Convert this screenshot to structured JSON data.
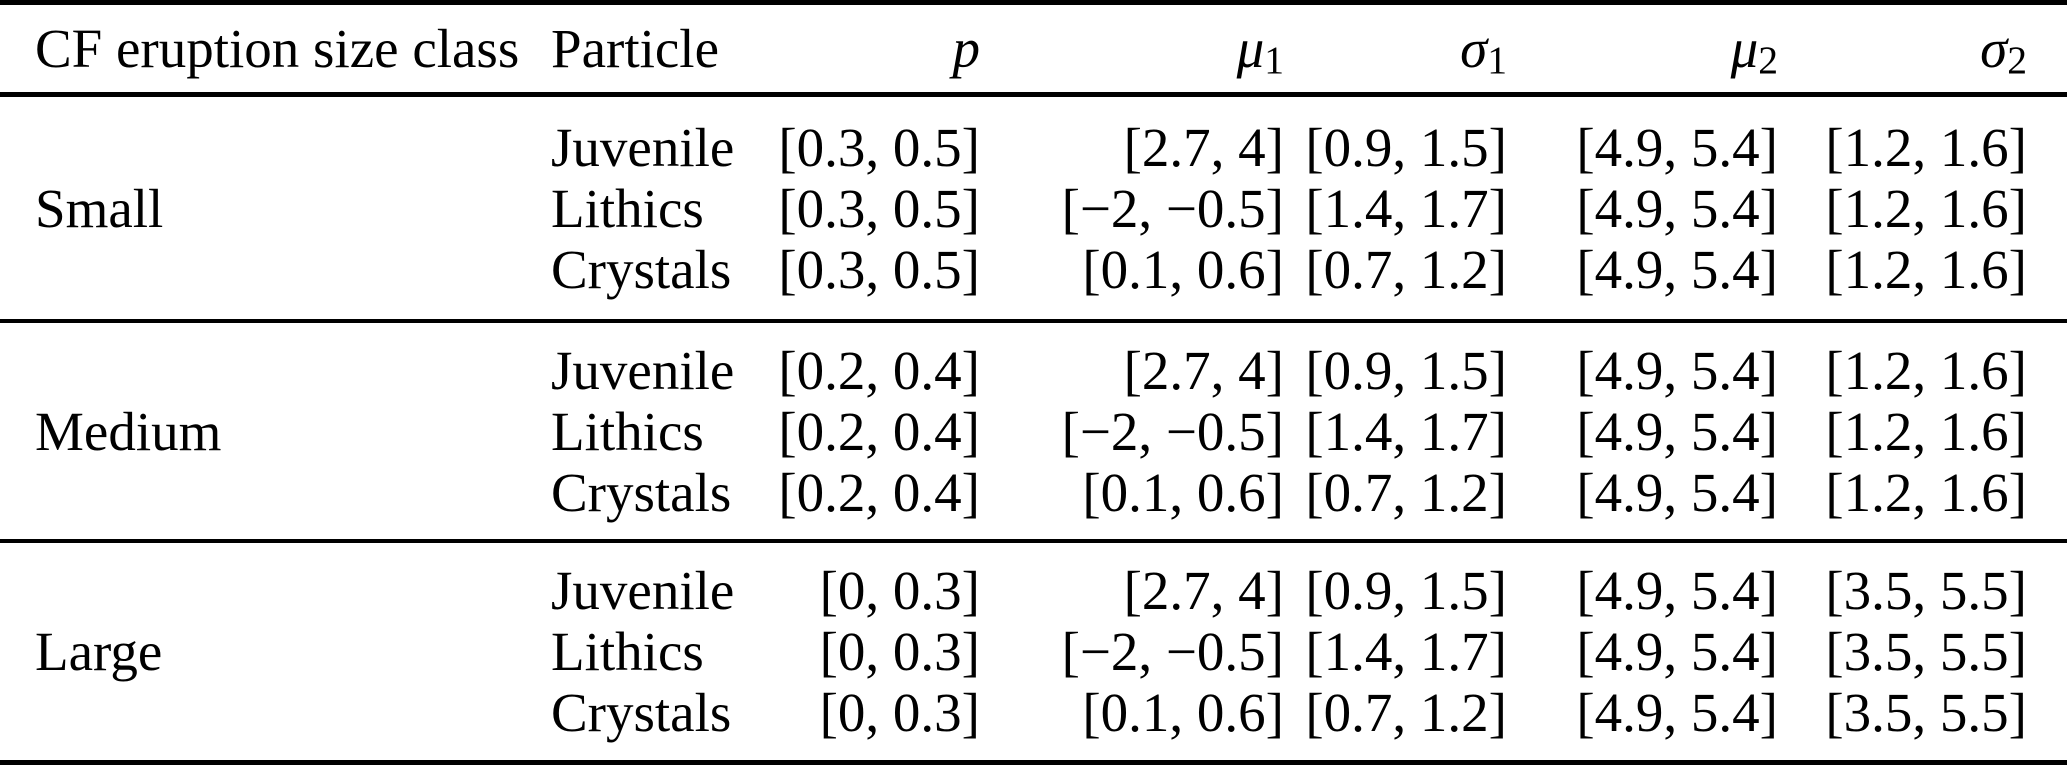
{
  "table": {
    "columns": [
      {
        "base": "CF eruption size class",
        "sub": ""
      },
      {
        "base": "Particle",
        "sub": ""
      },
      {
        "base": "p",
        "sub": ""
      },
      {
        "base": "μ",
        "sub": "1"
      },
      {
        "base": "σ",
        "sub": "1"
      },
      {
        "base": "μ",
        "sub": "2"
      },
      {
        "base": "σ",
        "sub": "2"
      }
    ],
    "groups": [
      {
        "size_class": "Small",
        "rows": [
          {
            "particle": "Juvenile",
            "p": "[0.3, 0.5]",
            "mu1": "[2.7, 4]",
            "sigma1": "[0.9, 1.5]",
            "mu2": "[4.9, 5.4]",
            "sigma2": "[1.2, 1.6]"
          },
          {
            "particle": "Lithics",
            "p": "[0.3, 0.5]",
            "mu1": "[−2, −0.5]",
            "sigma1": "[1.4, 1.7]",
            "mu2": "[4.9, 5.4]",
            "sigma2": "[1.2, 1.6]"
          },
          {
            "particle": "Crystals",
            "p": "[0.3, 0.5]",
            "mu1": "[0.1, 0.6]",
            "sigma1": "[0.7, 1.2]",
            "mu2": "[4.9, 5.4]",
            "sigma2": "[1.2, 1.6]"
          }
        ]
      },
      {
        "size_class": "Medium",
        "rows": [
          {
            "particle": "Juvenile",
            "p": "[0.2, 0.4]",
            "mu1": "[2.7, 4]",
            "sigma1": "[0.9, 1.5]",
            "mu2": "[4.9, 5.4]",
            "sigma2": "[1.2, 1.6]"
          },
          {
            "particle": "Lithics",
            "p": "[0.2, 0.4]",
            "mu1": "[−2, −0.5]",
            "sigma1": "[1.4, 1.7]",
            "mu2": "[4.9, 5.4]",
            "sigma2": "[1.2, 1.6]"
          },
          {
            "particle": "Crystals",
            "p": "[0.2, 0.4]",
            "mu1": "[0.1, 0.6]",
            "sigma1": "[0.7, 1.2]",
            "mu2": "[4.9, 5.4]",
            "sigma2": "[1.2, 1.6]"
          }
        ]
      },
      {
        "size_class": "Large",
        "rows": [
          {
            "particle": "Juvenile",
            "p": "[0, 0.3]",
            "mu1": "[2.7, 4]",
            "sigma1": "[0.9, 1.5]",
            "mu2": "[4.9, 5.4]",
            "sigma2": "[3.5, 5.5]"
          },
          {
            "particle": "Lithics",
            "p": "[0, 0.3]",
            "mu1": "[−2, −0.5]",
            "sigma1": "[1.4, 1.7]",
            "mu2": "[4.9, 5.4]",
            "sigma2": "[3.5, 5.5]"
          },
          {
            "particle": "Crystals",
            "p": "[0, 0.3]",
            "mu1": "[0.1, 0.6]",
            "sigma1": "[0.7, 1.2]",
            "mu2": "[4.9, 5.4]",
            "sigma2": "[3.5, 5.5]"
          }
        ]
      }
    ]
  }
}
